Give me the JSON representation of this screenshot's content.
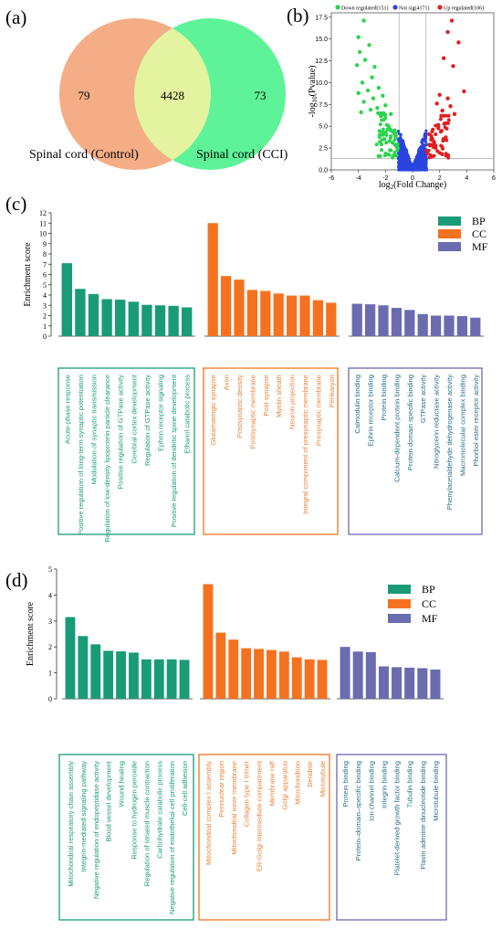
{
  "colors": {
    "bp": "#1a9b78",
    "cc": "#f4721f",
    "mf": "#6b6bb0",
    "bp_text": "#1a9b78",
    "cc_text": "#e8823a",
    "mf_text": "#2a6f8a",
    "control": "#f4ad85",
    "cci": "#5ef398",
    "overlap": "#e3f3a0",
    "down": "#2cd44c",
    "notsig": "#2a44e0",
    "up": "#e21f1f"
  },
  "panel_labels": {
    "a": "(a)",
    "b": "(b)",
    "c": "(c)",
    "d": "(d)"
  },
  "chart_data": [
    {
      "type": "venn",
      "sets": [
        {
          "name": "Spinal cord (Control)",
          "only": "79"
        },
        {
          "name": "Spinal cord (CCI)",
          "only": "73"
        }
      ],
      "overlap": "4428"
    },
    {
      "type": "scatter",
      "xlabel": "log2(Fold Change)",
      "ylabel": "-log10(Pvalue)",
      "xlim": [
        -6,
        6
      ],
      "ylim": [
        0,
        18
      ],
      "xticks": [
        "-6",
        "-4",
        "-2",
        "0",
        "2",
        "4",
        "6"
      ],
      "yticks": [
        "0.0",
        "2.5",
        "5.0",
        "7.5",
        "10.0",
        "12.5",
        "15.0",
        "17.5"
      ],
      "legend": [
        {
          "key": "down",
          "label": "Down regulated(151)"
        },
        {
          "key": "notsig",
          "label": "Not sig(4171)"
        },
        {
          "key": "up",
          "label": "Up regulated(106)"
        }
      ],
      "threshold_lines": {
        "x": [
          -1,
          1
        ],
        "y": 1.3
      }
    },
    {
      "type": "bar",
      "ylabel": "Enrichment score",
      "ylim": [
        0,
        12
      ],
      "yticks": [
        "0",
        "1",
        "2",
        "3",
        "4",
        "5",
        "6",
        "7",
        "8",
        "9",
        "10",
        "11",
        "12"
      ],
      "legend": [
        {
          "key": "bp",
          "label": "BP"
        },
        {
          "key": "cc",
          "label": "CC"
        },
        {
          "key": "mf",
          "label": "MF"
        }
      ],
      "groups": [
        {
          "key": "bp",
          "categories": [
            "Acute-phase response",
            "Positive regulation of long-term synaptic potentiation",
            "Modulation of synaptic transmission",
            "Regulation of low-density lipoprotein particle clearance",
            "Positive regulation of GTPase activity",
            "Cerebral cortex development",
            "Regulation of GTPase activity",
            "Ephrin receptor signaling",
            "Positive regulation of dendritic spine development",
            "Ethanol catabolic process"
          ],
          "values": [
            7.1,
            4.6,
            4.1,
            3.6,
            3.55,
            3.35,
            3.05,
            3.0,
            2.95,
            2.8
          ]
        },
        {
          "key": "cc",
          "categories": [
            "Glutamatergic synapse",
            "Axon",
            "Postsynaptic density",
            "Postsynaptic membrane",
            "Post synapse",
            "Myelin sheath",
            "Neuron projection",
            "Integral component of presynaptic membrane",
            "Presynaptic membrane",
            "Perikaryon"
          ],
          "values": [
            11.0,
            5.85,
            5.5,
            4.5,
            4.4,
            4.15,
            3.95,
            3.95,
            3.5,
            3.25
          ]
        },
        {
          "key": "mf",
          "categories": [
            "Calmodulin binding",
            "Ephrin receptor binding",
            "Protein binding",
            "Calcium-dependent protein binding",
            "Protein domain specific binding",
            "GTPase activity",
            "Nitroglycerin reductase activity",
            "Phenylacetaldehyde dehydrogenase activity",
            "Macromolecular complex binding",
            "Phorbol ester receptor activity"
          ],
          "values": [
            3.15,
            3.1,
            3.0,
            2.75,
            2.55,
            2.15,
            2.0,
            2.0,
            1.95,
            1.8
          ]
        }
      ]
    },
    {
      "type": "bar",
      "ylabel": "Enrichment score",
      "ylim": [
        0,
        5
      ],
      "yticks": [
        "0",
        "1",
        "2",
        "3",
        "4",
        "5"
      ],
      "legend": [
        {
          "key": "bp",
          "label": "BP"
        },
        {
          "key": "cc",
          "label": "CC"
        },
        {
          "key": "mf",
          "label": "MF"
        }
      ],
      "groups": [
        {
          "key": "bp",
          "categories": [
            "Mitochondrial respiratory chain assembly",
            "Integrin-mediated signaling pathway",
            "Negative regulation of endopeptidase activity",
            "Blood vessel development",
            "Wound healing",
            "Response to hydrogen peroxide",
            "Regulation of striated muscle contraction",
            "Carbohydrate catabolic process",
            "Negative regulation of endothelial cell proliferation",
            "Cell-cell adhesion"
          ],
          "values": [
            3.15,
            2.42,
            2.1,
            1.85,
            1.83,
            1.78,
            1.52,
            1.52,
            1.52,
            1.5
          ]
        },
        {
          "key": "cc",
          "categories": [
            "Mitochondrial complex I assembly",
            "Perinuclear region",
            "Mitochondrial inner membrane",
            "Collagen type I trimer",
            "ER-Golgi intermediate compartment",
            "Membrane raft",
            "Golgi apparatus",
            "Mitochondrion",
            "Dendrite",
            "Microtubule"
          ],
          "values": [
            4.42,
            2.55,
            2.28,
            1.95,
            1.92,
            1.88,
            1.82,
            1.6,
            1.52,
            1.5
          ]
        },
        {
          "key": "mf",
          "categories": [
            "Protein binding",
            "Protein–domain–specific binding",
            "Ion channel binding",
            "Integrin binding",
            "Platelet-derived growth factor binding",
            "Tubulin binding",
            "Flavin adenine dinucleotide binding",
            "Microtubule binding"
          ],
          "values": [
            2.0,
            1.82,
            1.8,
            1.25,
            1.22,
            1.2,
            1.18,
            1.13
          ]
        }
      ]
    }
  ]
}
